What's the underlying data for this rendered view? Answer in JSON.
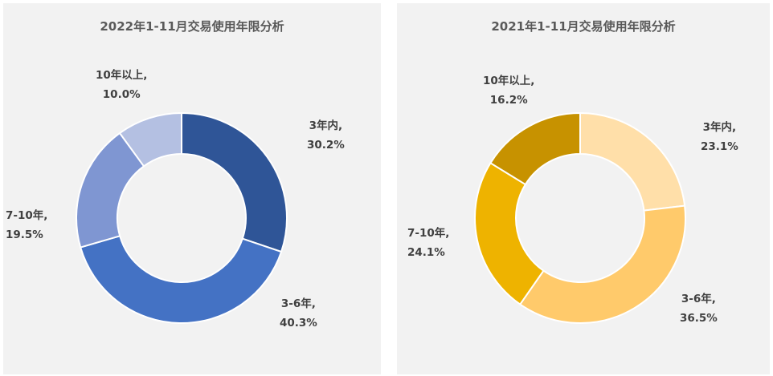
{
  "chart_data": [
    {
      "type": "pie",
      "title": "2022年1-11月交易使用年限分析",
      "slices": [
        {
          "name": "3年内,",
          "value": 30.2,
          "label": "30.2%",
          "color": "#2f5597"
        },
        {
          "name": "3-6年,",
          "value": 40.3,
          "label": "40.3%",
          "color": "#4472c4"
        },
        {
          "name": "7-10年,",
          "value": 19.5,
          "label": "19.5%",
          "color": "#7f96d2"
        },
        {
          "name": "10年以上,",
          "value": 10.0,
          "label": "10.0%",
          "color": "#b4c0e2"
        }
      ]
    },
    {
      "type": "pie",
      "title": "2021年1-11月交易使用年限分析",
      "slices": [
        {
          "name": "3年内,",
          "value": 23.1,
          "label": "23.1%",
          "color": "#ffdfa9"
        },
        {
          "name": "3-6年,",
          "value": 36.5,
          "label": "36.5%",
          "color": "#ffca6b"
        },
        {
          "name": "7-10年,",
          "value": 24.1,
          "label": "24.1%",
          "color": "#eeb300"
        },
        {
          "name": "10年以上,",
          "value": 16.2,
          "label": "16.2%",
          "color": "#c79200"
        }
      ]
    }
  ]
}
